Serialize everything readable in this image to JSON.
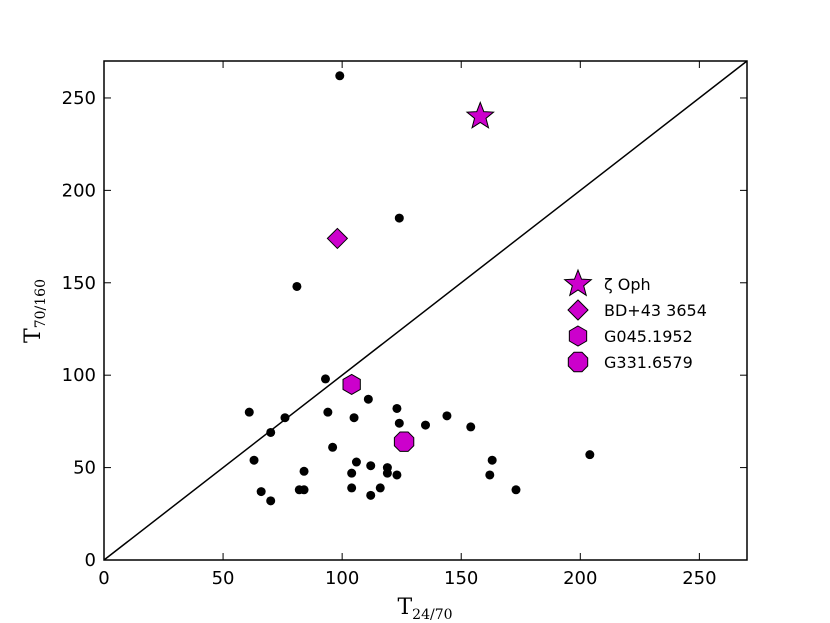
{
  "chart_data": {
    "type": "scatter",
    "xlabel": "T",
    "xlabel_sub": "24/70",
    "ylabel": "T",
    "ylabel_sub": "70/160",
    "xlim": [
      0,
      270
    ],
    "ylim": [
      0,
      270
    ],
    "x_ticks": [
      "0",
      "50",
      "100",
      "150",
      "200",
      "250"
    ],
    "x_tick_values": [
      0,
      50,
      100,
      150,
      200,
      250
    ],
    "y_ticks": [
      "0",
      "50",
      "100",
      "150",
      "200",
      "250"
    ],
    "y_tick_values": [
      0,
      50,
      100,
      150,
      200,
      250
    ],
    "grid": false,
    "legend_position": "right",
    "reference_line": {
      "type": "one-to-one",
      "from": [
        0,
        0
      ],
      "to": [
        270,
        270
      ]
    },
    "background_points": {
      "color": "#000000",
      "points": [
        [
          99,
          262
        ],
        [
          124,
          185
        ],
        [
          81,
          148
        ],
        [
          93,
          98
        ],
        [
          111,
          87
        ],
        [
          61,
          80
        ],
        [
          94,
          80
        ],
        [
          76,
          77
        ],
        [
          105,
          77
        ],
        [
          123,
          82
        ],
        [
          124,
          74
        ],
        [
          135,
          73
        ],
        [
          144,
          78
        ],
        [
          154,
          72
        ],
        [
          70,
          69
        ],
        [
          96,
          61
        ],
        [
          63,
          54
        ],
        [
          106,
          53
        ],
        [
          112,
          51
        ],
        [
          119,
          50
        ],
        [
          163,
          54
        ],
        [
          84,
          48
        ],
        [
          104,
          47
        ],
        [
          119,
          47
        ],
        [
          123,
          46
        ],
        [
          162,
          46
        ],
        [
          204,
          57
        ],
        [
          66,
          37
        ],
        [
          82,
          38
        ],
        [
          84,
          38
        ],
        [
          104,
          39
        ],
        [
          116,
          39
        ],
        [
          112,
          35
        ],
        [
          173,
          38
        ],
        [
          70,
          32
        ]
      ]
    },
    "series": [
      {
        "name": "ζ Oph",
        "marker": "star",
        "color": "#cc00cc",
        "x": 158,
        "y": 240
      },
      {
        "name": "BD+43 3654",
        "marker": "diamond",
        "color": "#cc00cc",
        "x": 98,
        "y": 174
      },
      {
        "name": "G045.1952",
        "marker": "hexagon",
        "color": "#cc00cc",
        "x": 104,
        "y": 95
      },
      {
        "name": "G331.6579",
        "marker": "octagon",
        "color": "#cc00cc",
        "x": 126,
        "y": 64
      }
    ]
  }
}
